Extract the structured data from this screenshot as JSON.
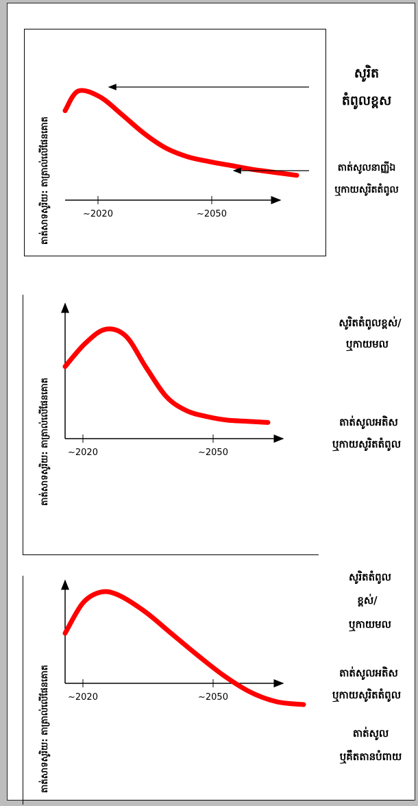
{
  "colors": {
    "curve": "#ff0000",
    "axis": "#000000",
    "background": "#ffffff"
  },
  "chart_data": [
    {
      "type": "line",
      "ylabel": "តាត់សាទសូរិយ: តាត្រាល់លើផែនគោត",
      "x_ticks": [
        "~2020",
        "~2050"
      ],
      "annotations": [
        "សូរិត",
        "តំពូលខ្ពស",
        "តាត់សូលនាញ្ញីឯ",
        "ឬកាយសូរិតតំពូល"
      ],
      "series": [
        {
          "x": [
            2012,
            2015,
            2020,
            2025,
            2030,
            2035,
            2040,
            2045,
            2050,
            2055,
            2060,
            2065
          ],
          "values": [
            0.78,
            0.98,
            0.92,
            0.74,
            0.55,
            0.4,
            0.31,
            0.26,
            0.22,
            0.18,
            0.15,
            0.12
          ]
        }
      ]
    },
    {
      "type": "line",
      "ylabel": "តាត់សាទសូរិយ: តាត្រាល់លើផែនគោត",
      "x_ticks": [
        "~2020",
        "~2050"
      ],
      "annotations": [
        "សូរិតតំពូលខ្ពស់/",
        "ឬកាយមល",
        "តាត់សូលអតិស",
        "ឬកាយសូរិតតំពូល"
      ],
      "series": [
        {
          "x": [
            2018,
            2022,
            2026,
            2030,
            2034,
            2038,
            2042,
            2046,
            2050,
            2054,
            2058
          ],
          "values": [
            0.56,
            0.76,
            0.88,
            0.82,
            0.55,
            0.3,
            0.18,
            0.13,
            0.1,
            0.09,
            0.08
          ]
        }
      ]
    },
    {
      "type": "line",
      "ylabel": "តាត់សាទសូរិយ: តាត្រាល់លើផែនគោត",
      "x_ticks": [
        "~2020",
        "~2050"
      ],
      "annotations": [
        "សូរិតតំពូល",
        "ខ្ពស់/",
        "ឬកាយមល",
        "តាត់សូលអតិស",
        "ឬកាយសូរិតតំពូល",
        "តាត់សូល",
        "ឬគឹតតានបំពាយ"
      ],
      "series": [
        {
          "x": [
            2018,
            2022,
            2026,
            2030,
            2036,
            2042,
            2048,
            2054,
            2060,
            2066,
            2072
          ],
          "values": [
            0.58,
            0.8,
            0.88,
            0.86,
            0.74,
            0.58,
            0.42,
            0.27,
            0.15,
            0.08,
            0.06
          ]
        }
      ]
    }
  ]
}
